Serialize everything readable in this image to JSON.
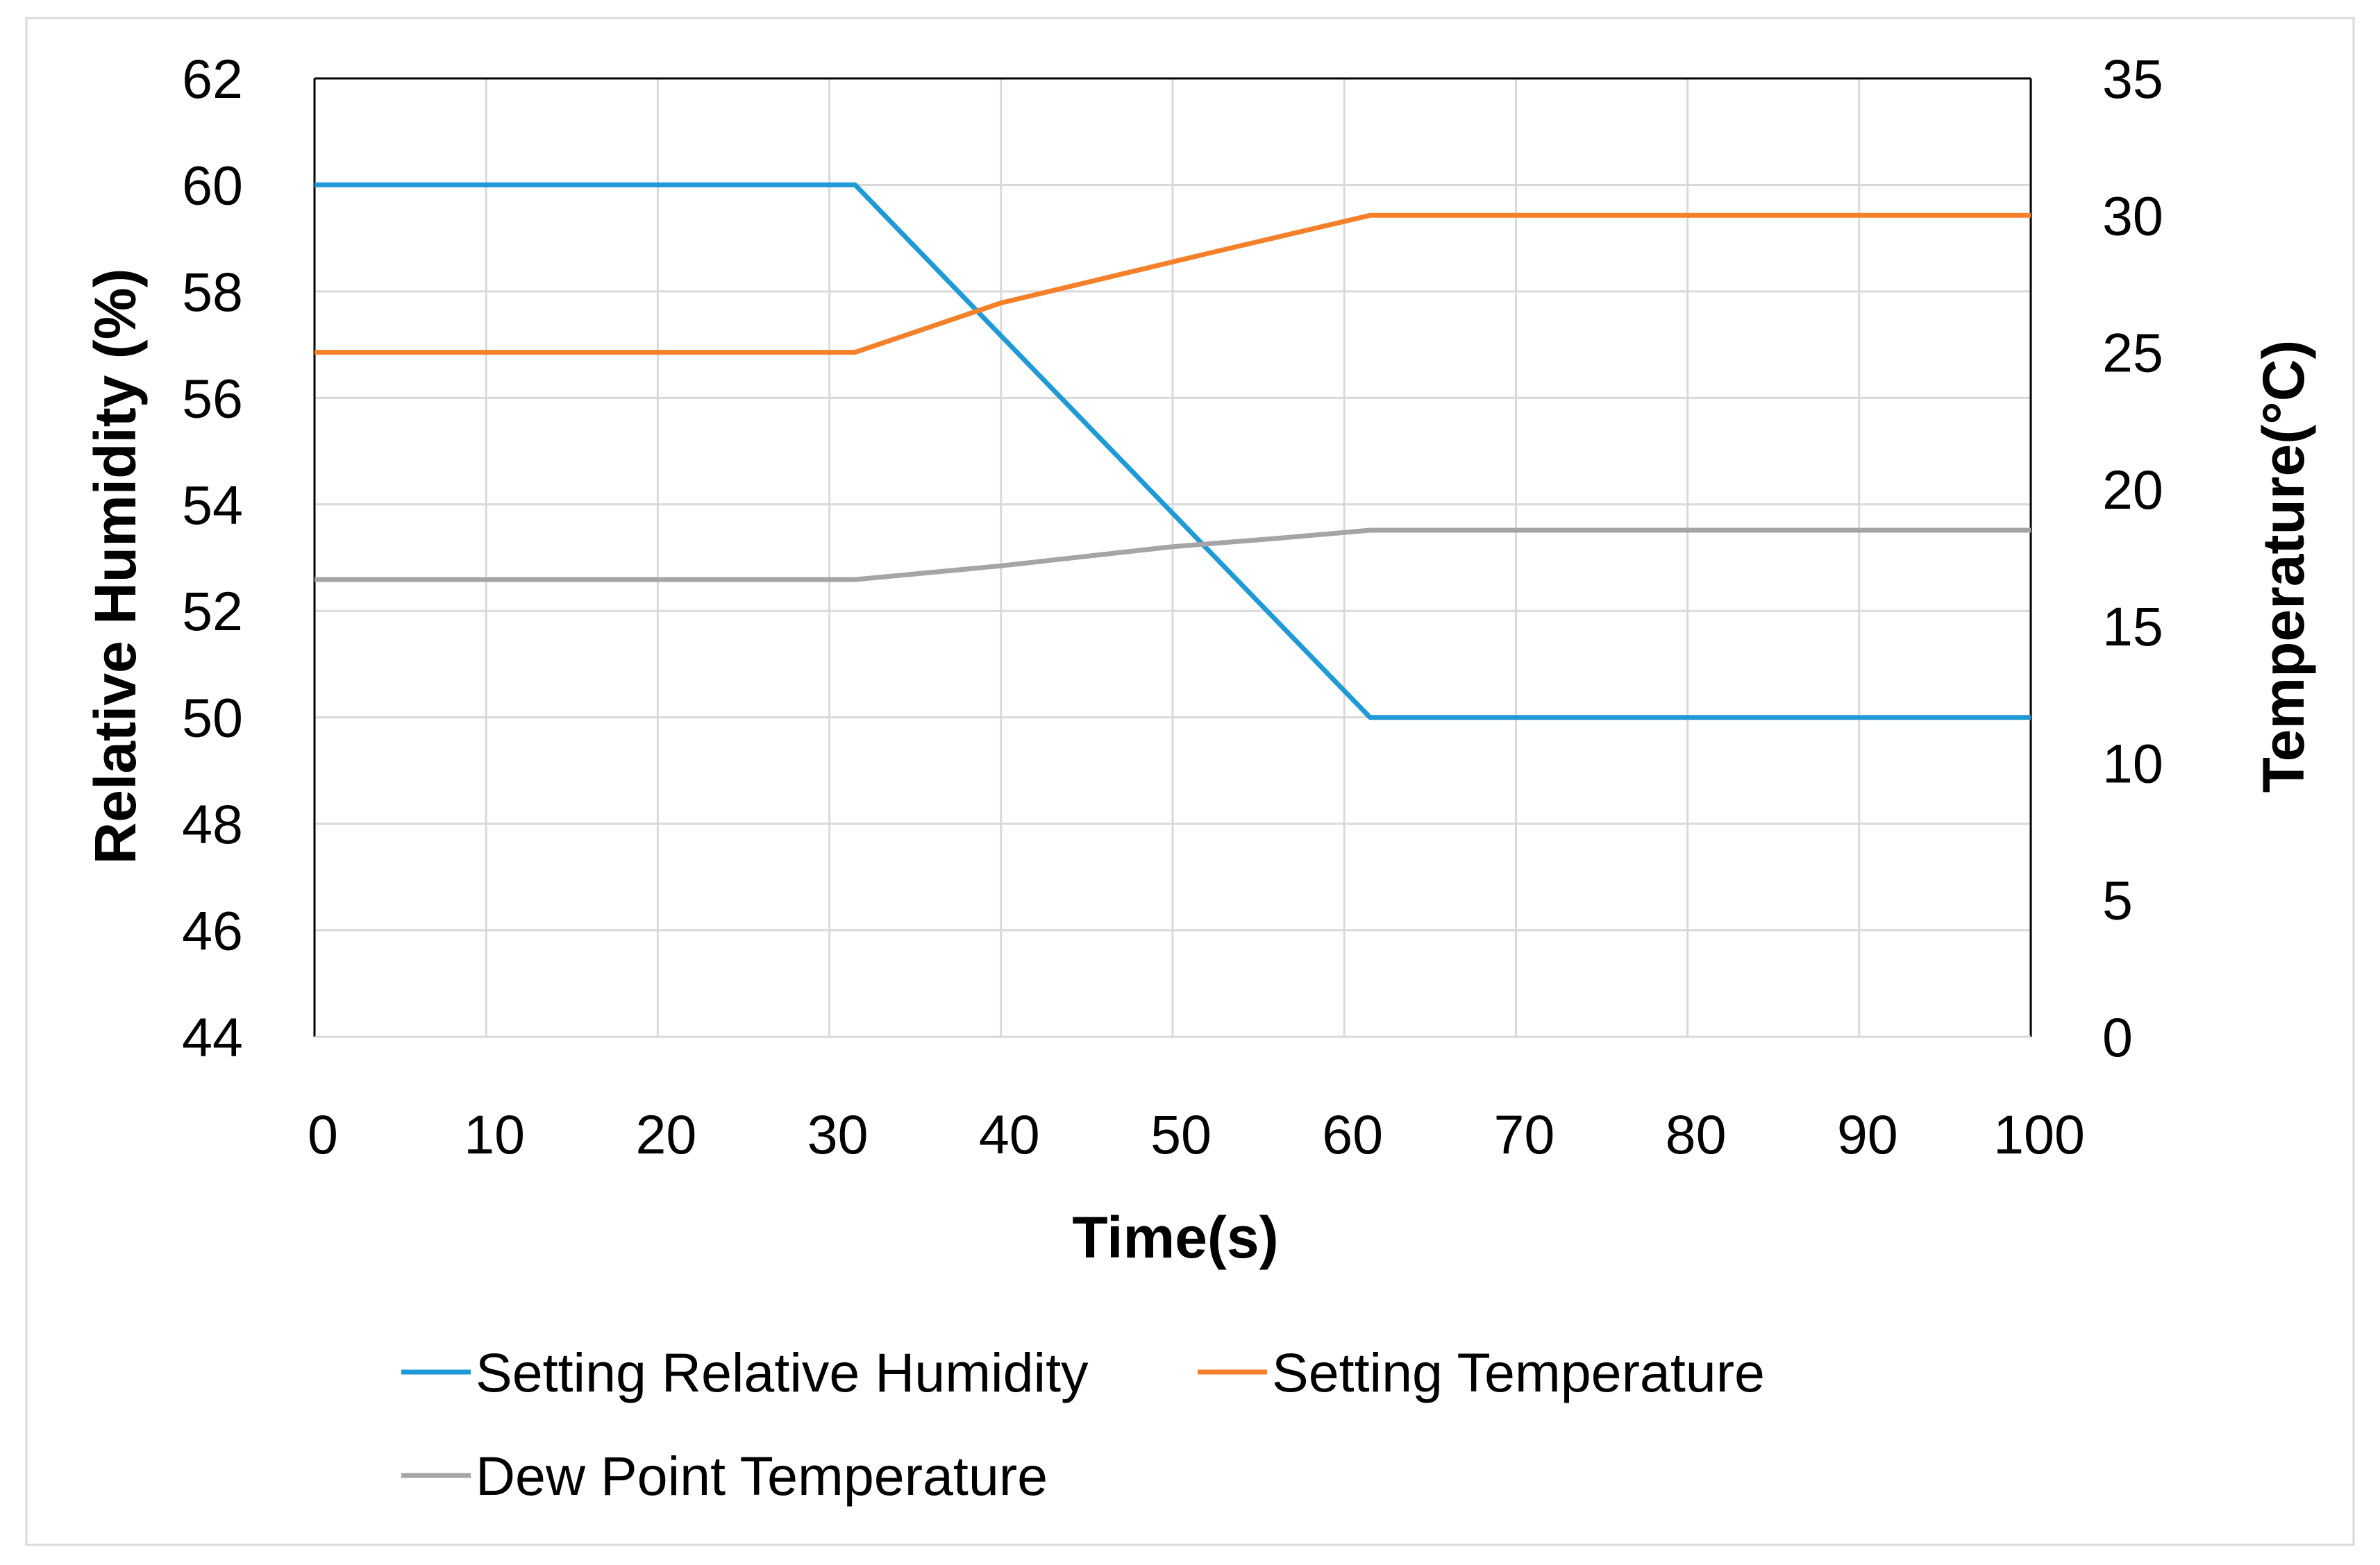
{
  "chart_data": {
    "type": "line",
    "title": "",
    "xlabel": "Time(s)",
    "ylabel": "Relative Humidity (%)",
    "y2label": "Temperature(°C)",
    "xlim": [
      0,
      100
    ],
    "ylim": [
      44,
      62
    ],
    "y2lim": [
      0,
      35
    ],
    "x_ticks": [
      "0",
      "10",
      "20",
      "30",
      "40",
      "50",
      "60",
      "70",
      "80",
      "90",
      "100"
    ],
    "y_ticks": [
      "44",
      "46",
      "48",
      "50",
      "52",
      "54",
      "56",
      "58",
      "60",
      "62"
    ],
    "y2_ticks": [
      "0",
      "5",
      "10",
      "15",
      "20",
      "25",
      "30",
      "35"
    ],
    "grid": true,
    "legend_position": "bottom",
    "series": [
      {
        "name": "Setting Relative Humidity",
        "axis": "left",
        "color": "#1f9ad6",
        "points": [
          [
            0,
            60
          ],
          [
            31.5,
            60
          ],
          [
            61.5,
            50
          ],
          [
            100,
            50
          ]
        ]
      },
      {
        "name": "Setting Temperature",
        "axis": "right",
        "color": "#f5802a",
        "points": [
          [
            0,
            25
          ],
          [
            31.5,
            25
          ],
          [
            40,
            26.8
          ],
          [
            48,
            28
          ],
          [
            52,
            28.6
          ],
          [
            61.5,
            30
          ],
          [
            100,
            30
          ]
        ]
      },
      {
        "name": "Dew Point Temperature",
        "axis": "right",
        "color": "#a5a5a5",
        "points": [
          [
            0,
            16.7
          ],
          [
            31.5,
            16.7
          ],
          [
            40,
            17.2
          ],
          [
            50,
            17.9
          ],
          [
            56,
            18.2
          ],
          [
            61.5,
            18.5
          ],
          [
            100,
            18.5
          ]
        ]
      }
    ]
  }
}
